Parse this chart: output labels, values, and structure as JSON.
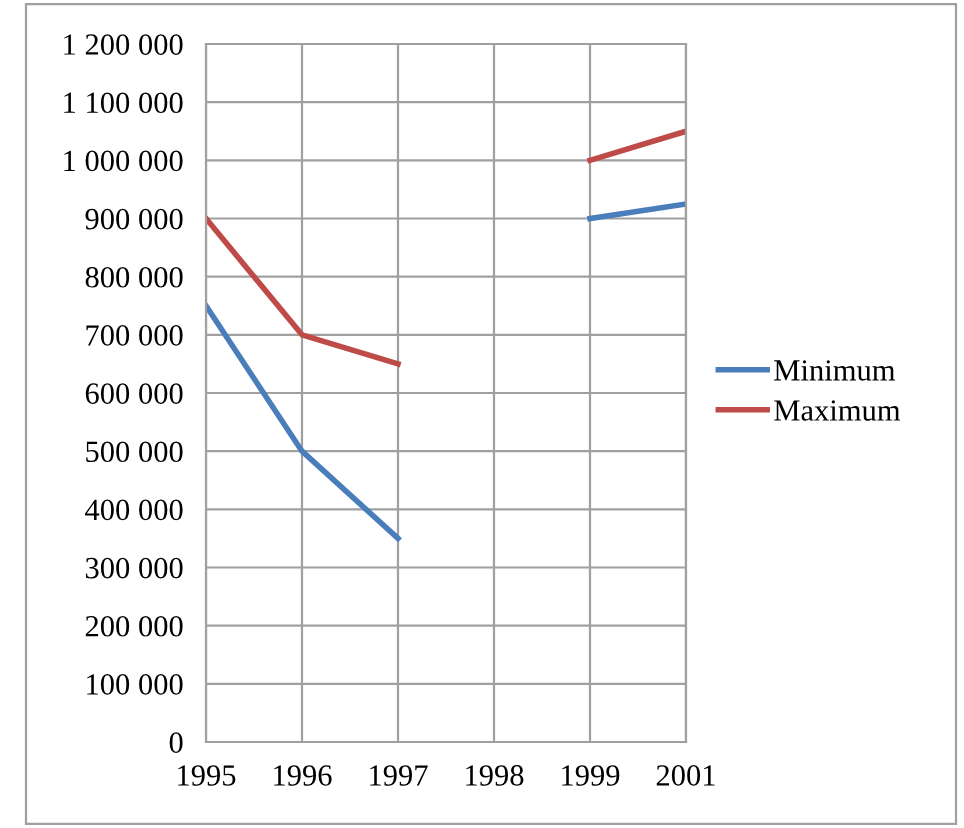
{
  "chart_data": {
    "type": "line",
    "categories": [
      "1995",
      "1996",
      "1997",
      "1998",
      "1999",
      "2001"
    ],
    "series": [
      {
        "name": "Minimum",
        "color": "#4a7ebb",
        "values": [
          750000,
          500000,
          350000,
          null,
          900000,
          925000
        ]
      },
      {
        "name": "Maximum",
        "color": "#be4b48",
        "values": [
          900000,
          700000,
          650000,
          null,
          1000000,
          1050000
        ]
      }
    ],
    "ylim": [
      0,
      1200000
    ],
    "yticks": [
      0,
      {
        "value": 100000,
        "label": "100 000"
      },
      {
        "value": 200000,
        "label": "200 000"
      },
      {
        "value": 300000,
        "label": "300 000"
      },
      {
        "value": 400000,
        "label": "400 000"
      },
      {
        "value": 500000,
        "label": "500 000"
      },
      {
        "value": 600000,
        "label": "600 000"
      },
      {
        "value": 700000,
        "label": "700 000"
      },
      {
        "value": 800000,
        "label": "800 000"
      },
      {
        "value": 900000,
        "label": "900 000"
      },
      {
        "value": 1000000,
        "label": "1 000 000"
      },
      {
        "value": 1100000,
        "label": "1 100 000"
      },
      {
        "value": 1200000,
        "label": "1 200 000"
      }
    ],
    "grid": true,
    "legend": "right",
    "marker": "none",
    "line_style": "solid"
  }
}
